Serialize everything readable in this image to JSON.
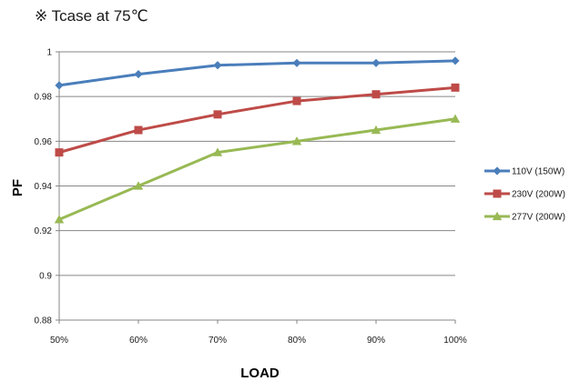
{
  "note": "※ Tcase at 75℃",
  "chart_data": {
    "type": "line",
    "title": "",
    "xlabel": "LOAD",
    "ylabel": "PF",
    "categories": [
      "50%",
      "60%",
      "70%",
      "80%",
      "90%",
      "100%"
    ],
    "ylim": [
      0.88,
      1
    ],
    "yticks": [
      0.88,
      0.9,
      0.92,
      0.94,
      0.96,
      0.98,
      1
    ],
    "ytick_labels": [
      "0.88",
      "0.9",
      "0.92",
      "0.94",
      "0.96",
      "0.98",
      "1"
    ],
    "grid": "horizontal",
    "legend_position": "right",
    "series": [
      {
        "name": "110V (150W)",
        "color": "#4a7ebb",
        "marker": "diamond",
        "values": [
          0.985,
          0.99,
          0.994,
          0.995,
          0.995,
          0.996
        ]
      },
      {
        "name": "230V (200W)",
        "color": "#be4b48",
        "marker": "square",
        "values": [
          0.955,
          0.965,
          0.972,
          0.978,
          0.981,
          0.984
        ]
      },
      {
        "name": "277V (200W)",
        "color": "#98b954",
        "marker": "triangle",
        "values": [
          0.925,
          0.94,
          0.955,
          0.96,
          0.965,
          0.97
        ]
      }
    ]
  }
}
